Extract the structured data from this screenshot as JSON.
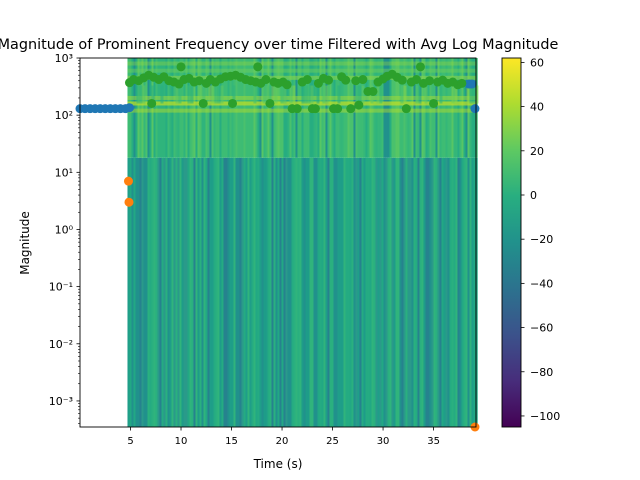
{
  "chart_data": {
    "type": "scatter",
    "title": "Magnitude of Prominent Frequency over time Filtered with Avg Log Magnitude",
    "xlabel": "Time (s)",
    "ylabel": "Magnitude",
    "xlim": [
      0,
      39.2
    ],
    "ylim": [
      0.00035,
      1000
    ],
    "yscale": "log",
    "x_ticks": [
      5,
      10,
      15,
      20,
      25,
      30,
      35
    ],
    "x_tick_labels": [
      "5",
      "10",
      "15",
      "20",
      "25",
      "30",
      "35"
    ],
    "y_ticks": [
      0.001,
      0.01,
      0.1,
      1,
      10,
      100,
      1000
    ],
    "y_tick_labels": [
      "10⁻³",
      "10⁻²",
      "10⁻¹",
      "10⁰",
      "10¹",
      "10²",
      "10³"
    ],
    "grid": false,
    "background": {
      "type": "spectrogram",
      "x_range": [
        4.7,
        39.2
      ],
      "colormap": "viridis"
    },
    "colorbar": {
      "range": [
        -105,
        62
      ],
      "ticks": [
        60,
        40,
        20,
        0,
        -20,
        -40,
        -60,
        -80,
        -100
      ],
      "tick_labels": [
        "60",
        "40",
        "20",
        "0",
        "−20",
        "−40",
        "−60",
        "−80",
        "−100"
      ],
      "colormap": "viridis"
    },
    "series": [
      {
        "color": "#1f77b4",
        "x": [
          0.0,
          0.5,
          1.0,
          1.5,
          2.0,
          2.5,
          3.0,
          3.5,
          4.0,
          4.5,
          4.9,
          38.5,
          38.8,
          39.1
        ],
        "y": [
          130,
          130,
          130,
          130,
          130,
          130,
          130,
          130,
          130,
          130,
          135,
          350,
          350,
          130
        ]
      },
      {
        "color": "#ff7f0e",
        "x": [
          4.8,
          4.85,
          39.1
        ],
        "y": [
          7.0,
          3.0,
          0.00035
        ]
      },
      {
        "color": "#2ca02c",
        "x": [
          4.9,
          5.3,
          5.8,
          6.3,
          6.8,
          7.1,
          7.3,
          7.8,
          8.3,
          8.8,
          9.3,
          9.8,
          10.0,
          10.3,
          10.8,
          11.3,
          11.8,
          12.2,
          12.5,
          12.9,
          13.4,
          13.9,
          14.4,
          14.9,
          15.1,
          15.4,
          15.9,
          16.4,
          16.9,
          17.4,
          17.6,
          17.9,
          18.4,
          18.8,
          19.2,
          19.6,
          20.1,
          20.5,
          21.0,
          21.5,
          22.0,
          22.5,
          23.0,
          23.3,
          23.6,
          24.1,
          24.6,
          25.1,
          25.5,
          25.9,
          26.3,
          26.8,
          27.3,
          27.6,
          28.0,
          28.5,
          29.0,
          29.5,
          30.0,
          30.4,
          30.9,
          31.4,
          31.9,
          32.3,
          32.8,
          33.3,
          33.7,
          34.0,
          34.6,
          35.0,
          35.4,
          35.9,
          36.4,
          36.9,
          37.4,
          37.8
        ],
        "y": [
          370,
          420,
          400,
          450,
          500,
          160,
          460,
          420,
          470,
          400,
          380,
          350,
          700,
          420,
          440,
          380,
          400,
          160,
          360,
          420,
          380,
          430,
          470,
          480,
          160,
          500,
          460,
          420,
          400,
          380,
          700,
          360,
          420,
          160,
          380,
          360,
          380,
          340,
          130,
          130,
          380,
          420,
          130,
          130,
          360,
          440,
          410,
          130,
          130,
          470,
          410,
          130,
          400,
          150,
          420,
          260,
          260,
          380,
          430,
          480,
          520,
          460,
          410,
          130,
          380,
          420,
          700,
          360,
          400,
          160,
          380,
          410,
          360,
          380,
          340,
          360
        ]
      }
    ]
  }
}
